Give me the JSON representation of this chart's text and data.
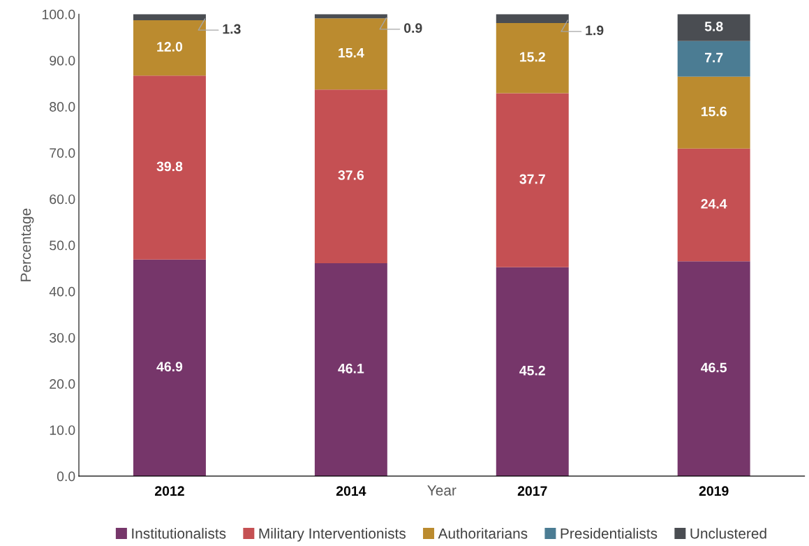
{
  "chart_data": {
    "type": "bar",
    "stacked": true,
    "xlabel": "Year",
    "ylabel": "Percentage",
    "categories": [
      "2012",
      "2014",
      "2017",
      "2019"
    ],
    "series": [
      {
        "name": "Institutionalists",
        "color": "#76366a",
        "values": [
          46.9,
          46.1,
          45.2,
          46.5
        ],
        "value_labels": [
          "46.9",
          "46.1",
          "45.2",
          "46.5"
        ]
      },
      {
        "name": "Military Interventionists",
        "color": "#c55053",
        "values": [
          39.8,
          37.6,
          37.7,
          24.4
        ],
        "value_labels": [
          "39.8",
          "37.6",
          "37.7",
          "24.4"
        ]
      },
      {
        "name": "Authoritarians",
        "color": "#bb8b2f",
        "values": [
          12.0,
          15.4,
          15.2,
          15.6
        ],
        "value_labels": [
          "12.0",
          "15.4",
          "15.2",
          "15.6"
        ]
      },
      {
        "name": "Presidentialists",
        "color": "#4b7c93",
        "values": [
          null,
          null,
          null,
          7.7
        ],
        "value_labels": [
          null,
          null,
          null,
          "7.7"
        ]
      },
      {
        "name": "Unclustered",
        "color": "#4a4d52",
        "values": [
          1.3,
          0.9,
          1.9,
          5.8
        ],
        "value_labels": [
          "1.3",
          "0.9",
          "1.9",
          "5.8"
        ]
      }
    ],
    "ylim": [
      0,
      100
    ],
    "yticks": [
      {
        "value": 0,
        "label": "0.0"
      },
      {
        "value": 10,
        "label": "10.0"
      },
      {
        "value": 20,
        "label": "20.0"
      },
      {
        "value": 30,
        "label": "30.0"
      },
      {
        "value": 40,
        "label": "40.0"
      },
      {
        "value": 50,
        "label": "50.0"
      },
      {
        "value": 60,
        "label": "60.0"
      },
      {
        "value": 70,
        "label": "70.0"
      },
      {
        "value": 80,
        "label": "80.0"
      },
      {
        "value": 90,
        "label": "90.0"
      },
      {
        "value": 100,
        "label": "100.0"
      }
    ],
    "grid": false,
    "legend": "bottom"
  }
}
